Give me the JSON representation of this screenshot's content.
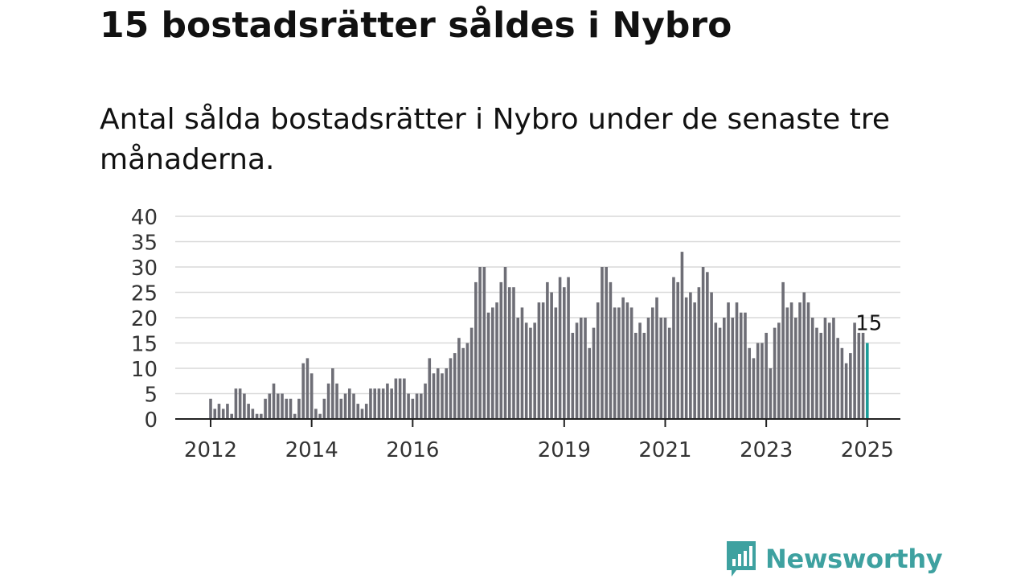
{
  "title": "15 bostadsrätter såldes i Nybro",
  "subtitle": "Antal sålda bostadsrätter i Nybro under de senaste tre månaderna.",
  "brand": {
    "name": "Newsworthy",
    "color": "#3ea1a0",
    "icon": "newsworthy-logo-icon"
  },
  "colors": {
    "bar": "#6e6e76",
    "highlight": "#1a9c98",
    "grid": "#d9d9d9",
    "axis": "#222222"
  },
  "chart_data": {
    "type": "bar",
    "xlabel": "",
    "ylabel": "",
    "ylim": [
      0,
      40
    ],
    "yticks": [
      "0",
      "5",
      "10",
      "15",
      "20",
      "25",
      "30",
      "35",
      "40"
    ],
    "xticks": [
      {
        "label": "2012",
        "index": 0
      },
      {
        "label": "2014",
        "index": 24
      },
      {
        "label": "2016",
        "index": 48
      },
      {
        "label": "2019",
        "index": 84
      },
      {
        "label": "2021",
        "index": 108
      },
      {
        "label": "2023",
        "index": 132
      },
      {
        "label": "2025",
        "index": 156
      }
    ],
    "grid": true,
    "highlight_label": "15",
    "values": [
      4,
      2,
      3,
      2,
      3,
      1,
      6,
      6,
      5,
      3,
      2,
      1,
      1,
      4,
      5,
      7,
      5,
      5,
      4,
      4,
      1,
      4,
      11,
      12,
      9,
      2,
      1,
      4,
      7,
      10,
      7,
      4,
      5,
      6,
      5,
      3,
      2,
      3,
      6,
      6,
      6,
      6,
      7,
      6,
      8,
      8,
      8,
      5,
      4,
      5,
      5,
      7,
      12,
      9,
      10,
      9,
      10,
      12,
      13,
      16,
      14,
      15,
      18,
      27,
      30,
      30,
      21,
      22,
      23,
      27,
      30,
      26,
      26,
      20,
      22,
      19,
      18,
      19,
      23,
      23,
      27,
      25,
      22,
      28,
      26,
      28,
      17,
      19,
      20,
      20,
      14,
      18,
      23,
      30,
      30,
      27,
      22,
      22,
      24,
      23,
      22,
      17,
      19,
      17,
      20,
      22,
      24,
      20,
      20,
      18,
      28,
      27,
      33,
      24,
      25,
      23,
      26,
      30,
      29,
      25,
      19,
      18,
      20,
      23,
      20,
      23,
      21,
      21,
      14,
      12,
      15,
      15,
      17,
      10,
      18,
      19,
      27,
      22,
      23,
      20,
      23,
      25,
      23,
      20,
      18,
      17,
      20,
      19,
      20,
      16,
      14,
      11,
      13,
      19,
      17,
      17,
      15
    ]
  }
}
